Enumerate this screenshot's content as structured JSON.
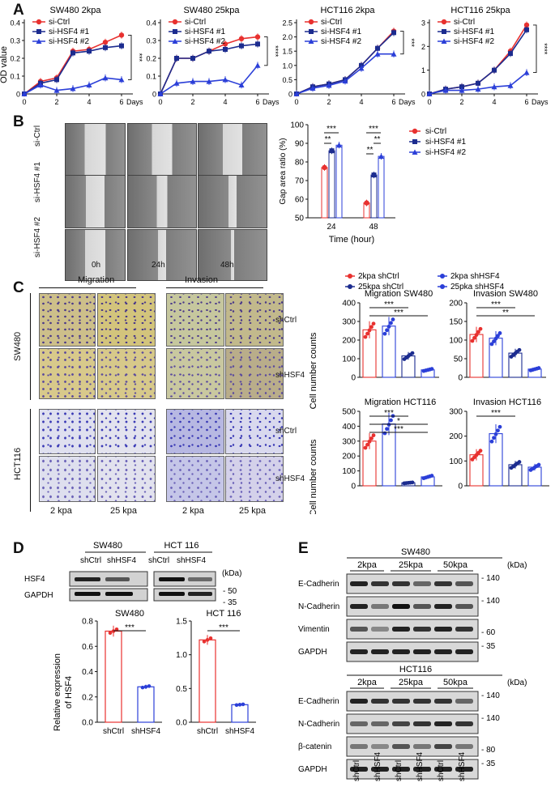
{
  "panels": {
    "A": "A",
    "B": "B",
    "C": "C",
    "D": "D",
    "E": "E"
  },
  "panelA": {
    "ylabel": "OD value",
    "xlabel": "Days",
    "charts": [
      {
        "title": "SW480 2kpa",
        "ylim": [
          0,
          0.4
        ],
        "yticks": [
          "0",
          "0.1",
          "0.2",
          "0.3",
          "0.4"
        ],
        "sig": "***",
        "series": [
          {
            "name": "si-Ctrl",
            "x": [
              0,
              1,
              2,
              3,
              4,
              5,
              6
            ],
            "y": [
              0,
              0.07,
              0.09,
              0.24,
              0.25,
              0.29,
              0.33
            ]
          },
          {
            "name": "si-HSF4 #1",
            "x": [
              0,
              1,
              2,
              3,
              4,
              5,
              6
            ],
            "y": [
              0,
              0.06,
              0.08,
              0.23,
              0.24,
              0.26,
              0.27
            ]
          },
          {
            "name": "si-HSF4 #2",
            "x": [
              0,
              1,
              2,
              3,
              4,
              5,
              6
            ],
            "y": [
              0,
              0.05,
              0.02,
              0.03,
              0.05,
              0.09,
              0.08
            ]
          }
        ]
      },
      {
        "title": "SW480 25kpa",
        "ylim": [
          0,
          0.4
        ],
        "yticks": [
          "0",
          "0.1",
          "0.2",
          "0.3",
          "0.4"
        ],
        "sig": "****",
        "series": [
          {
            "name": "si-Ctrl",
            "x": [
              0,
              1,
              2,
              3,
              4,
              5,
              6
            ],
            "y": [
              0,
              0.2,
              0.2,
              0.24,
              0.28,
              0.31,
              0.32
            ]
          },
          {
            "name": "si-HSF4 #1",
            "x": [
              0,
              1,
              2,
              3,
              4,
              5,
              6
            ],
            "y": [
              0,
              0.2,
              0.2,
              0.24,
              0.25,
              0.27,
              0.28
            ]
          },
          {
            "name": "si-HSF4 #2",
            "x": [
              0,
              1,
              2,
              3,
              4,
              5,
              6
            ],
            "y": [
              0,
              0.06,
              0.07,
              0.07,
              0.08,
              0.05,
              0.16
            ]
          }
        ]
      },
      {
        "title": "HCT116 2kpa",
        "ylim": [
          0,
          2.5
        ],
        "yticks": [
          "0",
          "0.5",
          "1.0",
          "1.5",
          "2.0",
          "2.5"
        ],
        "sig": "***",
        "series": [
          {
            "name": "si-Ctrl",
            "x": [
              0,
              1,
              2,
              3,
              4,
              5,
              6
            ],
            "y": [
              0,
              0.25,
              0.35,
              0.5,
              1.0,
              1.6,
              2.2
            ]
          },
          {
            "name": "si-HSF4 #1",
            "x": [
              0,
              1,
              2,
              3,
              4,
              5,
              6
            ],
            "y": [
              0,
              0.25,
              0.35,
              0.5,
              1.0,
              1.6,
              2.15
            ]
          },
          {
            "name": "si-HSF4 #2",
            "x": [
              0,
              1,
              2,
              3,
              4,
              5,
              6
            ],
            "y": [
              0,
              0.2,
              0.3,
              0.45,
              0.9,
              1.4,
              1.4
            ]
          }
        ]
      },
      {
        "title": "HCT116 25kpa",
        "ylim": [
          0,
          3
        ],
        "yticks": [
          "0",
          "1",
          "2",
          "3"
        ],
        "sig": "****",
        "series": [
          {
            "name": "si-Ctrl",
            "x": [
              0,
              1,
              2,
              3,
              4,
              5,
              6
            ],
            "y": [
              0,
              0.2,
              0.3,
              0.45,
              1.0,
              1.8,
              2.9
            ]
          },
          {
            "name": "si-HSF4 #1",
            "x": [
              0,
              1,
              2,
              3,
              4,
              5,
              6
            ],
            "y": [
              0,
              0.2,
              0.3,
              0.45,
              1.0,
              1.7,
              2.7
            ]
          },
          {
            "name": "si-HSF4 #2",
            "x": [
              0,
              1,
              2,
              3,
              4,
              5,
              6
            ],
            "y": [
              0,
              0.15,
              0.15,
              0.2,
              0.3,
              0.35,
              0.9
            ]
          }
        ]
      }
    ],
    "xticks": [
      "0",
      "2",
      "4",
      "6"
    ]
  },
  "panelB": {
    "rowlabels": [
      "si-Ctrl",
      "si-HSF4 #1",
      "si-HSF4 #2"
    ],
    "collabels": [
      "0h",
      "24h",
      "48h"
    ],
    "chart_data": {
      "type": "bar",
      "categories": [
        "24",
        "48"
      ],
      "ylabel": "Gap area ratio (%)",
      "xlabel": "Time (hour)",
      "ylim": [
        50,
        100
      ],
      "yticks": [
        "50",
        "60",
        "70",
        "80",
        "90",
        "100"
      ],
      "series": [
        {
          "name": "si-Ctrl",
          "values": [
            77,
            58
          ]
        },
        {
          "name": "si-HSF4 #1",
          "values": [
            86,
            73
          ]
        },
        {
          "name": "si-HSF4 #2",
          "values": [
            89,
            83
          ]
        }
      ],
      "sig": [
        "**",
        "***",
        "**",
        "***",
        "**"
      ]
    }
  },
  "panelC": {
    "headers": [
      "Migration",
      "Invasion"
    ],
    "rowgroups": [
      "SW480",
      "HCT116"
    ],
    "rowlabels": [
      "shCtrl",
      "shHSF4",
      "shCtrl",
      "shHSF4"
    ],
    "collabels": [
      "2 kpa",
      "25 kpa",
      "2 kpa",
      "25 kpa"
    ],
    "legend": [
      "2kpa shCtrl",
      "2kpa shHSF4",
      "25kpa shCtrl",
      "25pka shHSF4"
    ],
    "ylabel": "Cell number counts",
    "charts": [
      {
        "title": "Migration SW480",
        "ylim": [
          0,
          400
        ],
        "yticks": [
          "0",
          "100",
          "200",
          "300",
          "400"
        ],
        "values": [
          255,
          275,
          115,
          40
        ],
        "sig": [
          "***",
          "***"
        ]
      },
      {
        "title": "Invasion SW480",
        "ylim": [
          0,
          200
        ],
        "yticks": [
          "0",
          "50",
          "100",
          "150",
          "200"
        ],
        "values": [
          115,
          105,
          65,
          22
        ],
        "sig": [
          "***",
          "**"
        ]
      },
      {
        "title": "Migration HCT116",
        "ylim": [
          0,
          500
        ],
        "yticks": [
          "0",
          "100",
          "200",
          "300",
          "400",
          "500"
        ],
        "values": [
          300,
          415,
          20,
          60
        ],
        "sig": [
          "***",
          "*",
          "***"
        ]
      },
      {
        "title": "Invasion HCT116",
        "ylim": [
          0,
          300
        ],
        "yticks": [
          "0",
          "100",
          "200",
          "300"
        ],
        "values": [
          125,
          210,
          85,
          75
        ],
        "sig": [
          "***"
        ]
      }
    ]
  },
  "panelD": {
    "cells": [
      "SW480",
      "HCT 116"
    ],
    "lanes": [
      "shCtrl",
      "shHSF4",
      "shCtrl",
      "shHSF4"
    ],
    "bands": [
      "HSF4",
      "GAPDH"
    ],
    "kda_label": "(kDa)",
    "markers": [
      "50",
      "35"
    ],
    "ylabel_line1": "Relative expression",
    "ylabel_line2": "of HSF4",
    "charts": [
      {
        "title": "SW480",
        "categories": [
          "shCtrl",
          "shHSF4"
        ],
        "values": [
          0.72,
          0.28
        ],
        "ylim": [
          0,
          0.8
        ],
        "yticks": [
          "0.0",
          "0.2",
          "0.4",
          "0.6",
          "0.8"
        ],
        "sig": "***"
      },
      {
        "title": "HCT 116",
        "categories": [
          "shCtrl",
          "shHSF4"
        ],
        "values": [
          1.22,
          0.26
        ],
        "ylim": [
          0,
          1.5
        ],
        "yticks": [
          "0.0",
          "0.5",
          "1.0",
          "1.5"
        ],
        "sig": "***"
      }
    ]
  },
  "panelE": {
    "blots": [
      {
        "title": "SW480",
        "groups": [
          "2kpa",
          "25kpa",
          "50kpa"
        ],
        "bands": [
          "E-Cadherin",
          "N-Cadherin",
          "Vimentin",
          "GAPDH"
        ],
        "markers": [
          "140",
          "140",
          "60",
          "35"
        ]
      },
      {
        "title": "HCT116",
        "groups": [
          "2kpa",
          "25kpa",
          "50kpa"
        ],
        "bands": [
          "E-Cadherin",
          "N-Cadherin",
          "β-catenin",
          "GAPDH"
        ],
        "markers": [
          "140",
          "140",
          "80",
          "35"
        ]
      }
    ],
    "kda_label": "(kDa)",
    "lanes": [
      "shCtrl",
      "shHSF4",
      "shCtrl",
      "shHSF4",
      "shCtrl",
      "shHSF4"
    ]
  },
  "colors": {
    "ctrl": "#e8312f",
    "hsf1": "#1c2c8f",
    "hsf2": "#2b3fd8",
    "axis": "#111111"
  }
}
